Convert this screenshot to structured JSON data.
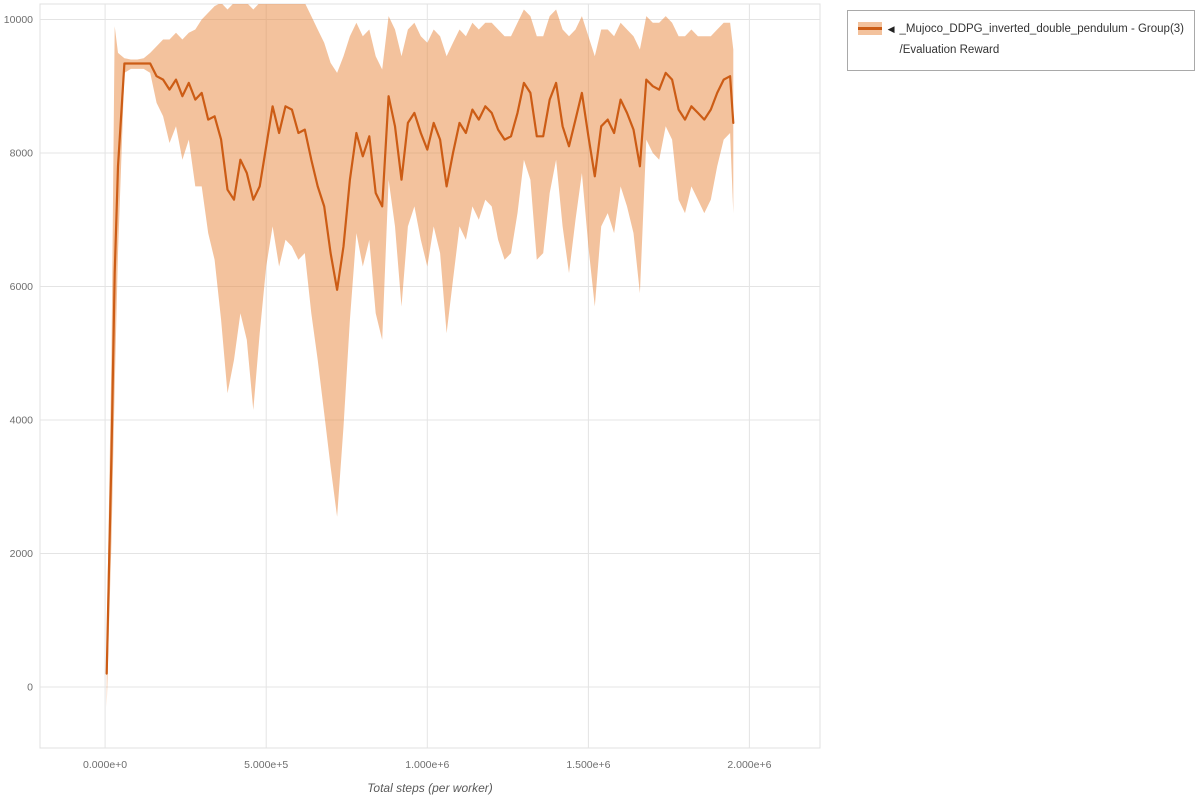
{
  "legend": {
    "collapse_icon": "◀",
    "series_label": "_Mujoco_DDPG_inverted_double_pendulum - Group(3)",
    "metric_label": "/Evaluation Reward"
  },
  "colors": {
    "line": "#cc5c15",
    "band": "#e8863c",
    "band_opacity": 0.5,
    "swatch_band": "#f3c29d",
    "grid": "#e4e4e4",
    "tick_text": "#6e6e6e",
    "plot_border": "#e0e0e0"
  },
  "chart_data": {
    "type": "line",
    "title": "",
    "xlabel": "Total steps (per worker)",
    "ylabel": "",
    "grid": true,
    "legend_position": "top-right",
    "x_tick_values": [
      0,
      500000,
      1000000,
      1500000,
      2000000
    ],
    "x_tick_labels": [
      "0.000e+0",
      "5.000e+5",
      "1.000e+6",
      "1.500e+6",
      "2.000e+6"
    ],
    "y_tick_values": [
      0,
      2000,
      4000,
      6000,
      8000,
      10000
    ],
    "y_tick_labels": [
      "0",
      "2000",
      "4000",
      "6000",
      "8000",
      "10000"
    ],
    "xlim": [
      -202000,
      2219000
    ],
    "ylim": [
      -914,
      10232
    ],
    "series": [
      {
        "name": "_Mujoco_DDPG_inverted_double_pendulum - Group(3)/Evaluation Reward",
        "x": [
          5000,
          20000,
          30000,
          40000,
          60000,
          80000,
          100000,
          120000,
          140000,
          160000,
          180000,
          200000,
          220000,
          240000,
          260000,
          280000,
          300000,
          320000,
          340000,
          360000,
          380000,
          400000,
          420000,
          440000,
          460000,
          480000,
          500000,
          520000,
          540000,
          560000,
          580000,
          600000,
          620000,
          640000,
          660000,
          680000,
          700000,
          720000,
          740000,
          760000,
          780000,
          800000,
          820000,
          840000,
          860000,
          880000,
          900000,
          920000,
          940000,
          960000,
          980000,
          1000000,
          1020000,
          1040000,
          1060000,
          1080000,
          1100000,
          1120000,
          1140000,
          1160000,
          1180000,
          1200000,
          1220000,
          1240000,
          1260000,
          1280000,
          1300000,
          1320000,
          1340000,
          1360000,
          1380000,
          1400000,
          1420000,
          1440000,
          1460000,
          1480000,
          1500000,
          1520000,
          1540000,
          1560000,
          1580000,
          1600000,
          1620000,
          1640000,
          1660000,
          1680000,
          1700000,
          1720000,
          1740000,
          1760000,
          1780000,
          1800000,
          1820000,
          1840000,
          1860000,
          1880000,
          1900000,
          1920000,
          1940000,
          1950000
        ],
        "mean": [
          200,
          3500,
          6200,
          7800,
          9340,
          9340,
          9340,
          9340,
          9340,
          9150,
          9100,
          8950,
          9100,
          8850,
          9050,
          8800,
          8900,
          8500,
          8550,
          8200,
          7450,
          7300,
          7900,
          7700,
          7300,
          7500,
          8100,
          8700,
          8300,
          8700,
          8650,
          8300,
          8350,
          7900,
          7500,
          7200,
          6500,
          5950,
          6600,
          7600,
          8300,
          7950,
          8250,
          7400,
          7200,
          8850,
          8400,
          7600,
          8450,
          8600,
          8300,
          8050,
          8450,
          8200,
          7500,
          8000,
          8450,
          8300,
          8650,
          8500,
          8700,
          8600,
          8350,
          8200,
          8250,
          8600,
          9050,
          8900,
          8250,
          8250,
          8800,
          9050,
          8400,
          8100,
          8500,
          8900,
          8250,
          7650,
          8400,
          8500,
          8300,
          8800,
          8600,
          8350,
          7800,
          9100,
          9000,
          8950,
          9200,
          9100,
          8650,
          8500,
          8700,
          8600,
          8500,
          8650,
          8900,
          9100,
          9150,
          8450
        ],
        "band_low": [
          -300,
          2200,
          4500,
          6500,
          9200,
          9260,
          9260,
          9260,
          9200,
          8750,
          8550,
          8150,
          8400,
          7900,
          8200,
          7500,
          7500,
          6800,
          6400,
          5500,
          4400,
          4900,
          5600,
          5200,
          4150,
          5300,
          6300,
          6900,
          6300,
          6700,
          6600,
          6400,
          6500,
          5600,
          4900,
          4100,
          3300,
          2550,
          3900,
          5500,
          6800,
          6300,
          6700,
          5600,
          5200,
          7600,
          6900,
          5700,
          6900,
          7200,
          6700,
          6300,
          6900,
          6500,
          5300,
          6100,
          6900,
          6700,
          7200,
          7000,
          7300,
          7200,
          6700,
          6400,
          6500,
          7100,
          7900,
          7600,
          6400,
          6500,
          7400,
          7900,
          6900,
          6200,
          7000,
          7700,
          6600,
          5700,
          6900,
          7100,
          6800,
          7500,
          7200,
          6800,
          5900,
          8200,
          8000,
          7900,
          8400,
          8200,
          7300,
          7100,
          7500,
          7300,
          7100,
          7300,
          7800,
          8200,
          8300,
          7100
        ],
        "band_high": [
          700,
          5000,
          9900,
          9500,
          9420,
          9400,
          9400,
          9420,
          9500,
          9600,
          9700,
          9700,
          9800,
          9700,
          9800,
          9850,
          10000,
          10100,
          10200,
          10250,
          10150,
          10250,
          10250,
          10250,
          10150,
          10250,
          10250,
          10300,
          10250,
          10300,
          10250,
          10300,
          10250,
          10050,
          9850,
          9650,
          9350,
          9200,
          9450,
          9750,
          9950,
          9750,
          9850,
          9450,
          9250,
          10050,
          9850,
          9450,
          9850,
          9950,
          9750,
          9650,
          9850,
          9750,
          9450,
          9650,
          9850,
          9750,
          9950,
          9850,
          9950,
          9950,
          9850,
          9750,
          9750,
          9950,
          10150,
          10050,
          9750,
          9750,
          10050,
          10150,
          9850,
          9750,
          9850,
          10050,
          9750,
          9450,
          9850,
          9850,
          9750,
          9950,
          9850,
          9750,
          9550,
          10050,
          9950,
          9950,
          10050,
          9950,
          9750,
          9750,
          9850,
          9750,
          9750,
          9750,
          9850,
          9950,
          9950,
          9550
        ]
      }
    ]
  }
}
